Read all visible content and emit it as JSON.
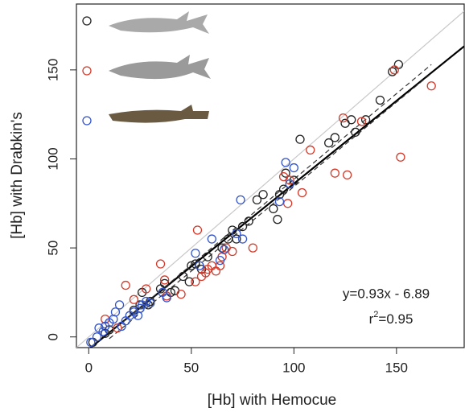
{
  "chart_data": {
    "type": "scatter",
    "x_label": "[Hb] with Hemocue",
    "y_label": "[Hb] with Drabkin's",
    "xlim": [
      -6,
      183
    ],
    "ylim": [
      -6,
      187
    ],
    "xticks": [
      0,
      50,
      100,
      150
    ],
    "yticks": [
      0,
      50,
      100,
      150
    ],
    "grid": false,
    "identity_line": true,
    "regression": {
      "slope": 0.93,
      "intercept": -6.89,
      "color": "#000000"
    },
    "ci_lines": [
      {
        "x": [
          10,
          167
        ],
        "y": [
          2,
          153
        ]
      },
      {
        "x": [
          10,
          167
        ],
        "y": [
          -1,
          148
        ]
      }
    ],
    "annotations": [
      "y=0.93x - 6.89"
    ],
    "r2_label": {
      "base": "r",
      "superscript": "2",
      "suffix": "=0.95"
    },
    "series": [
      {
        "color": "#222222",
        "x": [
          2,
          8,
          10,
          22,
          25,
          30,
          35,
          37,
          40,
          42,
          49,
          50,
          52,
          55,
          58,
          65,
          68,
          70,
          72,
          75,
          78,
          82,
          85,
          90,
          92,
          93,
          95,
          96,
          100,
          103,
          117,
          120,
          125,
          128,
          130,
          135,
          142,
          148,
          151,
          46,
          26,
          29
        ],
        "values": [
          -3,
          2,
          4,
          15,
          18,
          20,
          27,
          30,
          25,
          26,
          31,
          40,
          41,
          38,
          45,
          50,
          55,
          60,
          55,
          62,
          65,
          77,
          80,
          72,
          66,
          80,
          83,
          92,
          88,
          111,
          109,
          112,
          120,
          122,
          115,
          122,
          133,
          149,
          153,
          34,
          25,
          18
        ]
      },
      {
        "color": "#d43a2a",
        "x": [
          8,
          14,
          18,
          22,
          28,
          35,
          37,
          38,
          45,
          52,
          53,
          55,
          57,
          58,
          60,
          62,
          65,
          67,
          70,
          80,
          95,
          97,
          98,
          104,
          108,
          120,
          124,
          126,
          133,
          149,
          152,
          167,
          64
        ],
        "values": [
          10,
          5,
          29,
          21,
          27,
          41,
          32,
          23,
          24,
          31,
          60,
          34,
          36,
          38,
          40,
          37,
          45,
          50,
          48,
          50,
          90,
          75,
          88,
          81,
          105,
          92,
          123,
          91,
          121,
          150,
          101,
          141,
          40
        ]
      },
      {
        "color": "#3355cc",
        "x": [
          1,
          4,
          5,
          7,
          8,
          10,
          12,
          13,
          15,
          16,
          18,
          20,
          22,
          24,
          25,
          26,
          28,
          30,
          36,
          38,
          52,
          54,
          60,
          64,
          66,
          72,
          74,
          75,
          93,
          96,
          98,
          100
        ],
        "values": [
          -3,
          0,
          5,
          3,
          6,
          8,
          10,
          14,
          18,
          6,
          9,
          12,
          14,
          12,
          16,
          18,
          20,
          19,
          25,
          22,
          47,
          40,
          55,
          43,
          49,
          58,
          77,
          55,
          76,
          98,
          86,
          95
        ]
      }
    ]
  }
}
